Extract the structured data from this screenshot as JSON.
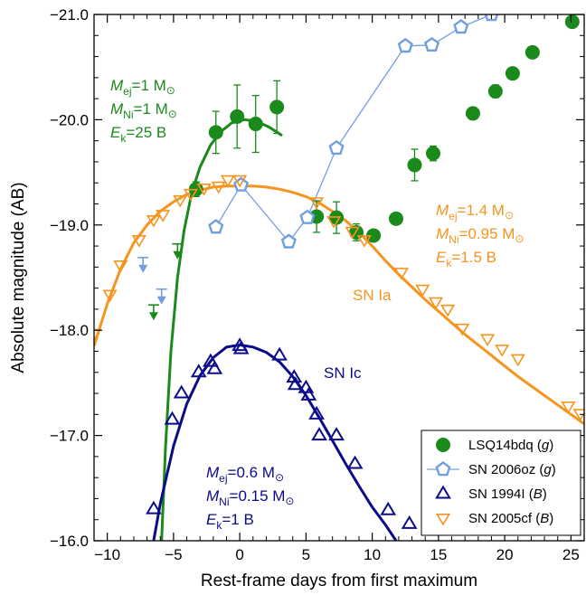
{
  "chart_data": {
    "type": "scatter",
    "xlabel": "Rest-frame days from first maximum",
    "ylabel": "Absolute magnitude (AB)",
    "xlim": [
      -11,
      26
    ],
    "ylim": [
      -16.0,
      -21.0
    ],
    "xticks": [
      -10,
      -5,
      0,
      5,
      10,
      15,
      20,
      25
    ],
    "xtick_labels": [
      "−10",
      "−5",
      "0",
      "5",
      "10",
      "15",
      "20",
      "25"
    ],
    "yticks": [
      -16.0,
      -17.0,
      -18.0,
      -19.0,
      -20.0,
      -21.0
    ],
    "ytick_labels": [
      "−16.0",
      "−17.0",
      "−18.0",
      "−19.0",
      "−20.0",
      "−21.0"
    ],
    "grid": false,
    "legend_position": "bottom-right",
    "colors": {
      "lsq": "#1a8a1a",
      "sn2006oz": "#6f9fe0",
      "sn1994i": "#0b0b8a",
      "sn2005cf": "#f5941e"
    },
    "series": [
      {
        "key": "lsq",
        "name": "LSQ14bdq",
        "band": "g",
        "marker": "filled-circle",
        "points": [
          {
            "x": -3.3,
            "y": -19.34,
            "err": 0.07
          },
          {
            "x": -1.8,
            "y": -19.88,
            "err": 0.2
          },
          {
            "x": -0.2,
            "y": -20.03,
            "err": 0.3
          },
          {
            "x": 1.2,
            "y": -19.96,
            "err": 0.27
          },
          {
            "x": 2.8,
            "y": -20.12,
            "err": 0.25
          },
          {
            "x": 5.8,
            "y": -19.08,
            "err": 0.15
          },
          {
            "x": 7.3,
            "y": -19.07,
            "err": 0.15
          },
          {
            "x": 8.8,
            "y": -18.93,
            "err": 0.08
          },
          {
            "x": 10.1,
            "y": -18.9,
            "err": 0.05
          },
          {
            "x": 11.8,
            "y": -19.06,
            "err": 0.05
          },
          {
            "x": 13.2,
            "y": -19.57,
            "err": 0.15
          },
          {
            "x": 14.6,
            "y": -19.68,
            "err": 0.07
          },
          {
            "x": 17.6,
            "y": -20.06,
            "err": 0.04
          },
          {
            "x": 19.3,
            "y": -20.27,
            "err": 0.06
          },
          {
            "x": 20.6,
            "y": -20.44,
            "err": 0.05
          },
          {
            "x": 22.1,
            "y": -20.64,
            "err": 0.04
          },
          {
            "x": 25.1,
            "y": -20.93,
            "err": 0.04
          }
        ],
        "upper_limits": [
          {
            "x": -6.5,
            "y": -18.12
          },
          {
            "x": -4.7,
            "y": -18.7
          }
        ]
      },
      {
        "key": "sn2006oz",
        "name": "SN 2006oz",
        "band": "g",
        "marker": "open-pentagon",
        "connected": true,
        "points": [
          {
            "x": -1.8,
            "y": -18.98
          },
          {
            "x": 0.1,
            "y": -19.38
          },
          {
            "x": 3.7,
            "y": -18.84
          },
          {
            "x": 5.1,
            "y": -19.07
          },
          {
            "x": 7.3,
            "y": -19.73
          },
          {
            "x": 12.5,
            "y": -20.7
          },
          {
            "x": 14.5,
            "y": -20.71
          },
          {
            "x": 16.7,
            "y": -20.88
          },
          {
            "x": 19.0,
            "y": -21.0
          }
        ],
        "upper_limits": [
          {
            "x": -7.3,
            "y": -18.57
          },
          {
            "x": -5.9,
            "y": -18.27
          }
        ]
      },
      {
        "key": "sn1994i",
        "name": "SN 1994I",
        "band": "B",
        "marker": "open-triangle-up",
        "points": [
          {
            "x": -6.5,
            "y": -16.3
          },
          {
            "x": -5.1,
            "y": -17.15
          },
          {
            "x": -4.4,
            "y": -17.4
          },
          {
            "x": -3.1,
            "y": -17.6
          },
          {
            "x": -2.2,
            "y": -17.7
          },
          {
            "x": -1.9,
            "y": -17.63
          },
          {
            "x": 0.0,
            "y": -17.85
          },
          {
            "x": 0.1,
            "y": -17.82
          },
          {
            "x": 3.0,
            "y": -17.76
          },
          {
            "x": 4.1,
            "y": -17.55
          },
          {
            "x": 4.2,
            "y": -17.48
          },
          {
            "x": 5.0,
            "y": -17.45
          },
          {
            "x": 5.2,
            "y": -17.38
          },
          {
            "x": 5.8,
            "y": -17.2
          },
          {
            "x": 6.0,
            "y": -17.0
          },
          {
            "x": 7.3,
            "y": -17.0
          },
          {
            "x": 8.7,
            "y": -16.73
          },
          {
            "x": 11.2,
            "y": -16.29
          },
          {
            "x": 12.8,
            "y": -16.16
          }
        ]
      },
      {
        "key": "sn2005cf",
        "name": "SN 2005cf",
        "band": "B",
        "marker": "open-triangle-down",
        "points": [
          {
            "x": -11.0,
            "y": -17.97
          },
          {
            "x": -9.8,
            "y": -18.34
          },
          {
            "x": -9.0,
            "y": -18.62
          },
          {
            "x": -7.6,
            "y": -18.86
          },
          {
            "x": -6.5,
            "y": -19.05
          },
          {
            "x": -5.8,
            "y": -19.1
          },
          {
            "x": -4.5,
            "y": -19.24
          },
          {
            "x": -3.7,
            "y": -19.3
          },
          {
            "x": -2.7,
            "y": -19.35
          },
          {
            "x": -1.6,
            "y": -19.37
          },
          {
            "x": -0.9,
            "y": -19.43
          },
          {
            "x": 0.0,
            "y": -19.43
          },
          {
            "x": 5.8,
            "y": -19.22
          },
          {
            "x": 7.1,
            "y": -19.04
          },
          {
            "x": 8.5,
            "y": -18.94
          },
          {
            "x": 9.4,
            "y": -18.86
          },
          {
            "x": 12.2,
            "y": -18.55
          },
          {
            "x": 13.8,
            "y": -18.39
          },
          {
            "x": 14.8,
            "y": -18.27
          },
          {
            "x": 15.7,
            "y": -18.2
          },
          {
            "x": 16.8,
            "y": -18.02
          },
          {
            "x": 18.7,
            "y": -17.92
          },
          {
            "x": 19.8,
            "y": -17.82
          },
          {
            "x": 21.0,
            "y": -17.73
          },
          {
            "x": 24.8,
            "y": -17.28
          },
          {
            "x": 25.7,
            "y": -17.21
          }
        ]
      }
    ],
    "model_curves": [
      {
        "key": "lsq",
        "points": [
          [
            -5.9,
            -16.0
          ],
          [
            -5.6,
            -16.9
          ],
          [
            -5.2,
            -17.8
          ],
          [
            -4.7,
            -18.5
          ],
          [
            -4.2,
            -18.95
          ],
          [
            -3.6,
            -19.32
          ],
          [
            -3.0,
            -19.55
          ],
          [
            -2.2,
            -19.76
          ],
          [
            -1.4,
            -19.89
          ],
          [
            -0.6,
            -19.97
          ],
          [
            0.3,
            -20.0
          ],
          [
            1.2,
            -19.99
          ],
          [
            2.2,
            -19.93
          ],
          [
            3.2,
            -19.85
          ]
        ]
      },
      {
        "key": "sn2005cf",
        "points": [
          [
            -11.0,
            -17.85
          ],
          [
            -10.0,
            -18.25
          ],
          [
            -9.0,
            -18.58
          ],
          [
            -8.0,
            -18.83
          ],
          [
            -7.0,
            -19.0
          ],
          [
            -6.0,
            -19.13
          ],
          [
            -5.0,
            -19.22
          ],
          [
            -4.0,
            -19.29
          ],
          [
            -3.0,
            -19.33
          ],
          [
            -2.0,
            -19.36
          ],
          [
            -1.0,
            -19.37
          ],
          [
            0.0,
            -19.37
          ],
          [
            1.0,
            -19.37
          ],
          [
            2.0,
            -19.36
          ],
          [
            3.0,
            -19.34
          ],
          [
            4.0,
            -19.31
          ],
          [
            5.0,
            -19.27
          ],
          [
            6.0,
            -19.21
          ],
          [
            7.0,
            -19.13
          ],
          [
            8.0,
            -19.04
          ],
          [
            9.0,
            -18.93
          ],
          [
            10.0,
            -18.8
          ],
          [
            11.0,
            -18.66
          ],
          [
            12.0,
            -18.53
          ],
          [
            13.0,
            -18.41
          ],
          [
            14.0,
            -18.29
          ],
          [
            15.0,
            -18.18
          ],
          [
            16.0,
            -18.07
          ],
          [
            17.0,
            -17.96
          ],
          [
            18.0,
            -17.86
          ],
          [
            19.0,
            -17.76
          ],
          [
            20.0,
            -17.66
          ],
          [
            21.0,
            -17.56
          ],
          [
            22.0,
            -17.47
          ],
          [
            23.0,
            -17.38
          ],
          [
            24.0,
            -17.29
          ],
          [
            25.0,
            -17.2
          ],
          [
            26.0,
            -17.11
          ]
        ]
      },
      {
        "key": "sn1994i",
        "points": [
          [
            -6.5,
            -16.0
          ],
          [
            -6.0,
            -16.35
          ],
          [
            -5.0,
            -16.9
          ],
          [
            -4.0,
            -17.3
          ],
          [
            -3.0,
            -17.57
          ],
          [
            -2.0,
            -17.74
          ],
          [
            -1.0,
            -17.84
          ],
          [
            0.0,
            -17.86
          ],
          [
            1.0,
            -17.84
          ],
          [
            2.0,
            -17.79
          ],
          [
            3.0,
            -17.7
          ],
          [
            4.0,
            -17.56
          ],
          [
            5.0,
            -17.38
          ],
          [
            6.0,
            -17.17
          ],
          [
            7.0,
            -16.95
          ],
          [
            8.0,
            -16.73
          ],
          [
            9.0,
            -16.52
          ],
          [
            10.0,
            -16.32
          ],
          [
            11.0,
            -16.15
          ],
          [
            11.8,
            -16.0
          ]
        ]
      }
    ],
    "annotations": [
      {
        "key": "lsq",
        "lines": [
          {
            "sym": "M",
            "sub": "ej",
            "value": "=1 M",
            "sun": true
          },
          {
            "sym": "M",
            "sub": "Ni",
            "value": "=1 M",
            "sun": true
          },
          {
            "sym": "E",
            "sub": "k",
            "value": "=25 B",
            "sun": false
          }
        ]
      },
      {
        "key": "sn2005cf",
        "lines": [
          {
            "sym": "M",
            "sub": "ej",
            "value": "=1.4 M",
            "sun": true
          },
          {
            "sym": "M",
            "sub": "Ni",
            "value": "=0.95 M",
            "sun": true
          },
          {
            "sym": "E",
            "sub": "k",
            "value": "=1.5 B",
            "sun": false
          }
        ]
      },
      {
        "key": "sn1994i",
        "lines": [
          {
            "sym": "M",
            "sub": "ej",
            "value": "=0.6 M",
            "sun": true
          },
          {
            "sym": "M",
            "sub": "Ni",
            "value": "=0.15 M",
            "sun": true
          },
          {
            "sym": "E",
            "sub": "k",
            "value": "=1 B",
            "sun": false
          }
        ]
      }
    ],
    "labels": [
      {
        "key": "sn2005cf",
        "text": "SN Ia"
      },
      {
        "key": "sn1994i",
        "text": "SN Ic"
      }
    ]
  }
}
